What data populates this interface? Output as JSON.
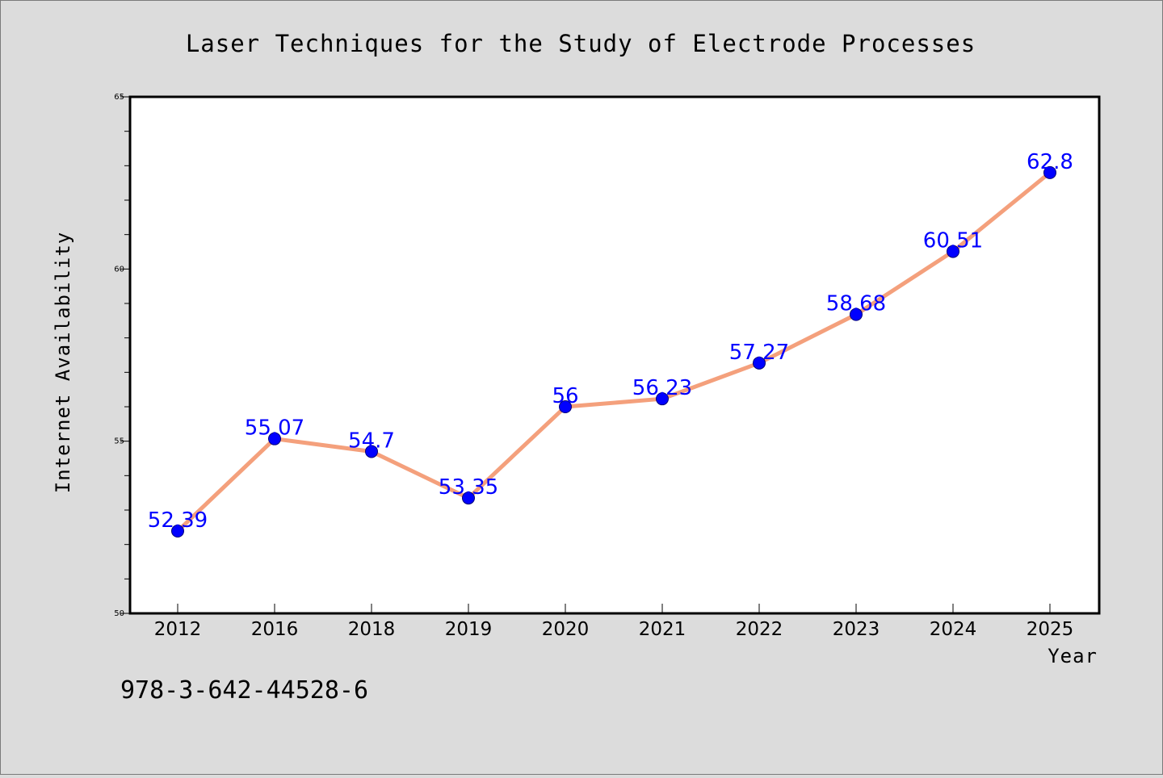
{
  "chart_data": {
    "type": "line",
    "title": "Laser Techniques for the Study of Electrode Processes",
    "xlabel": "Year",
    "ylabel": "Internet Availability",
    "categories": [
      "2012",
      "2016",
      "2018",
      "2019",
      "2020",
      "2021",
      "2022",
      "2023",
      "2024",
      "2025"
    ],
    "series": [
      {
        "values": [
          52.39,
          55.07,
          54.7,
          53.35,
          56,
          56.23,
          57.27,
          58.68,
          60.51,
          62.8
        ],
        "labels": [
          "52.39",
          "55.07",
          "54.7",
          "53.35",
          "56",
          "56.23",
          "57.27",
          "58.68",
          "60.51",
          "62.8"
        ]
      }
    ],
    "ylim": [
      50,
      65
    ],
    "yticks": [
      50,
      55,
      60,
      65
    ],
    "ytick_labels": [
      "50",
      "55",
      "60",
      "65"
    ],
    "y_minor_step": 1,
    "grid": false,
    "legend": "none",
    "line_color": "#f4a07c",
    "marker_color": "#0000ff",
    "label_color": "#0000ff"
  },
  "footer": {
    "isbn": "978-3-642-44528-6"
  },
  "colors": {
    "background": "#dcdcdc",
    "plot_area": "#ffffff"
  }
}
